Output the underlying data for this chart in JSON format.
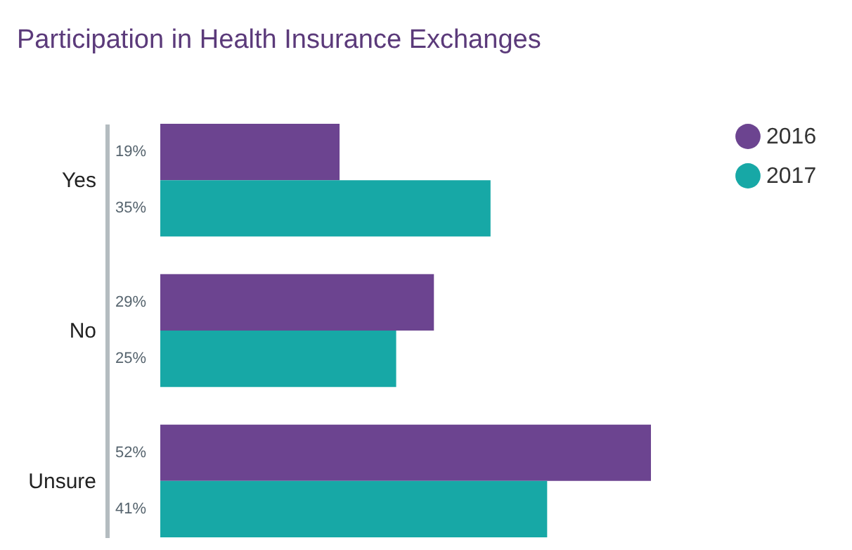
{
  "chart_data": {
    "type": "bar",
    "title": "Participation in Health Insurance Exchanges",
    "orientation": "horizontal",
    "legend": "right",
    "categories": [
      "Yes",
      "No",
      "Unsure"
    ],
    "series": [
      {
        "name": "2016",
        "color": "#6c4490",
        "values": [
          19,
          29,
          52
        ],
        "value_labels": [
          "19%",
          "29%",
          "52%"
        ]
      },
      {
        "name": "2017",
        "color": "#17a8a6",
        "values": [
          35,
          25,
          41
        ],
        "value_labels": [
          "35%",
          "25%",
          "41%"
        ]
      }
    ]
  }
}
